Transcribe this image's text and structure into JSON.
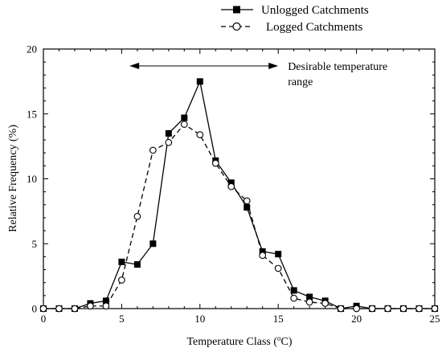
{
  "chart_data": {
    "type": "line",
    "title": "",
    "xlabel": "Temperature Class (",
    "xlabel_sup": "o",
    "xlabel_end": "C)",
    "ylabel": "Relative Frequency (%)",
    "xlim": [
      0,
      25
    ],
    "ylim": [
      0,
      20
    ],
    "xticks": [
      "0",
      "5",
      "10",
      "15",
      "20",
      "25"
    ],
    "yticks": [
      "0",
      "5",
      "10",
      "15",
      "20"
    ],
    "grid": false,
    "legend_position": "top-right",
    "x": [
      0,
      1,
      2,
      3,
      4,
      5,
      6,
      7,
      8,
      9,
      10,
      11,
      12,
      13,
      14,
      15,
      16,
      17,
      18,
      19,
      20,
      21,
      22,
      23,
      24,
      25
    ],
    "series": [
      {
        "name": "Unlogged Catchments",
        "marker": "filled-square",
        "line_style": "solid",
        "color": "#000000",
        "values": [
          0,
          0,
          0,
          0.4,
          0.6,
          3.6,
          3.4,
          5.0,
          13.5,
          14.7,
          17.5,
          11.4,
          9.7,
          7.8,
          4.4,
          4.2,
          1.4,
          0.9,
          0.6,
          0,
          0.2,
          0,
          0,
          0,
          0,
          0
        ]
      },
      {
        "name": "Logged Catchments",
        "marker": "open-circle",
        "line_style": "dashed",
        "color": "#000000",
        "values": [
          0,
          0,
          0,
          0.2,
          0.2,
          2.2,
          7.1,
          12.2,
          12.8,
          14.2,
          13.4,
          11.2,
          9.4,
          8.3,
          4.1,
          3.1,
          0.8,
          0.5,
          0.4,
          0,
          0,
          0,
          0,
          0,
          0,
          0
        ]
      }
    ],
    "annotation": {
      "text_line1": "Desirable temperature",
      "text_line2": "range",
      "x_start": 5.5,
      "x_end": 15,
      "y": 18.7
    }
  }
}
